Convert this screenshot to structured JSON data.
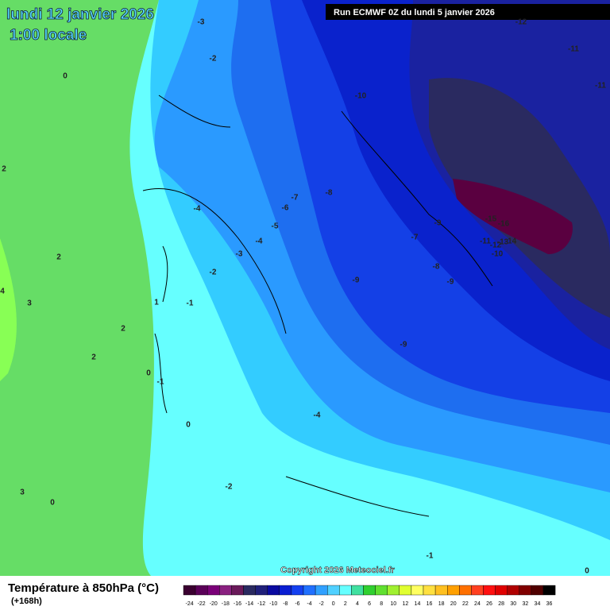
{
  "header": {
    "date": "lundi 12 janvier 2026",
    "time": "1:00 locale",
    "run": "Run ECMWF 0Z du lundi 5 janvier 2026"
  },
  "copyright": "Copyright 2026 Meteociel.fr",
  "legend": {
    "title": "Température à 850hPa (°C)",
    "subtitle": "(+168h)",
    "labels": [
      -24,
      -22,
      -20,
      -18,
      -16,
      -14,
      -12,
      -10,
      -8,
      -6,
      -4,
      -2,
      0,
      2,
      4,
      6,
      8,
      10,
      12,
      14,
      16,
      18,
      20,
      22,
      24,
      26,
      28,
      30,
      32,
      34,
      36
    ],
    "colors": [
      "#3a0030",
      "#5a0058",
      "#7a0078",
      "#8a2080",
      "#6a1a5a",
      "#2a2a60",
      "#20207a",
      "#0a0aa0",
      "#0a1ed2",
      "#1440f0",
      "#2070ff",
      "#30a0ff",
      "#50d0ff",
      "#66ffff",
      "#40e0a0",
      "#30d030",
      "#60e030",
      "#a0f030",
      "#e0ff30",
      "#ffff60",
      "#ffe040",
      "#ffc020",
      "#ffa000",
      "#ff7000",
      "#ff4020",
      "#ff1010",
      "#e00000",
      "#b00000",
      "#800000",
      "#500000",
      "#000000"
    ]
  },
  "isotherm_labels": [
    -12,
    -11,
    -11,
    -3,
    -2,
    0,
    -10,
    2,
    -8,
    -7,
    -6,
    -4,
    -5,
    -4,
    -3,
    -2,
    -9,
    -7,
    -15,
    -16,
    -11,
    -12,
    -13,
    -14,
    -10,
    -8,
    -9,
    -9,
    2,
    4,
    3,
    1,
    -1,
    2,
    2,
    0,
    -1,
    -9,
    -4,
    0,
    -2,
    3,
    0,
    -1,
    0
  ]
}
